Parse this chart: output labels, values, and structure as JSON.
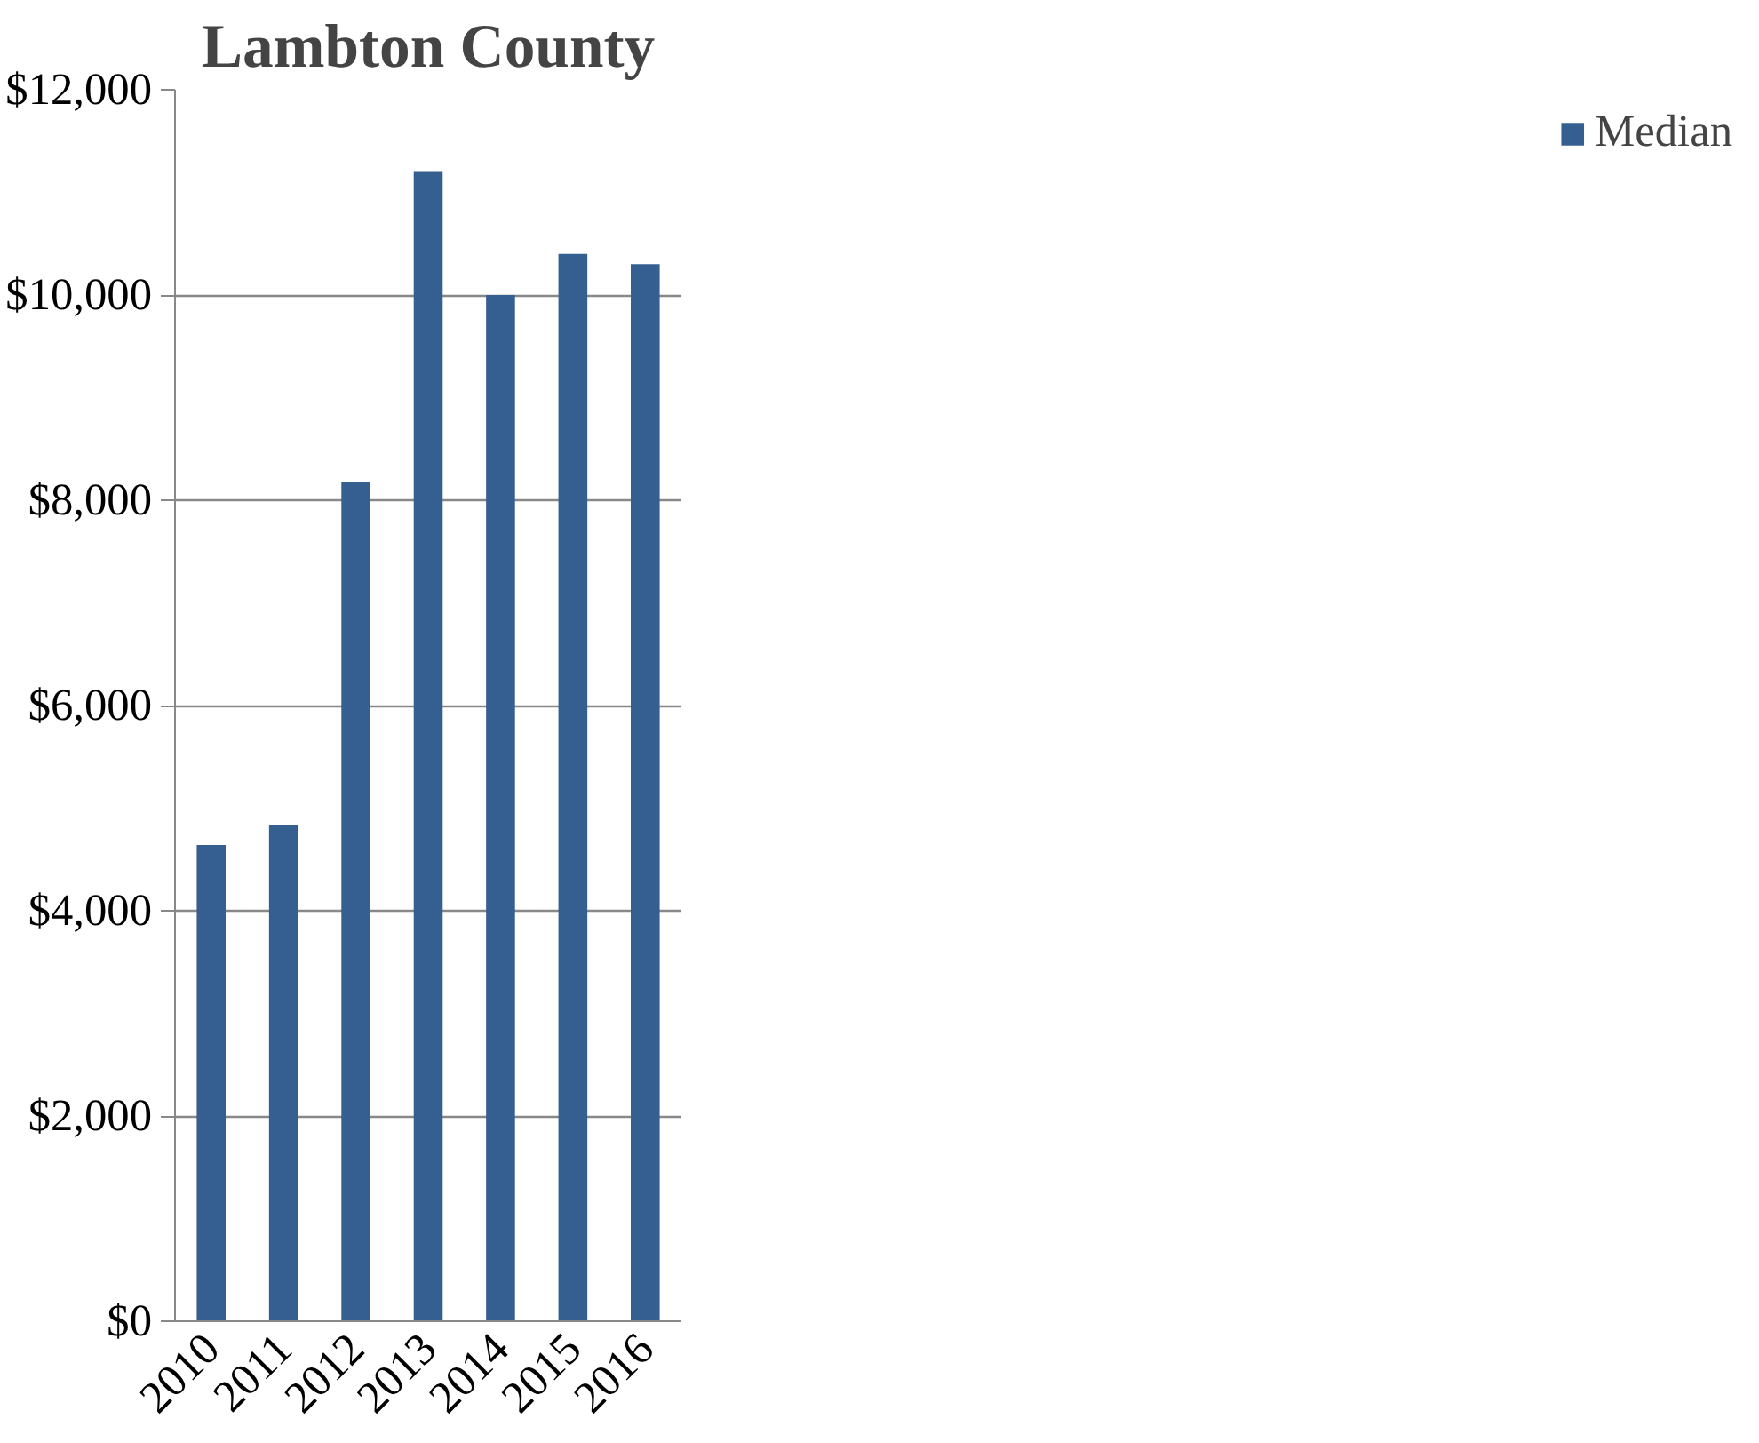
{
  "chart_data": {
    "type": "bar",
    "title": "Lambton County",
    "categories": [
      "2010",
      "2011",
      "2012",
      "2013",
      "2014",
      "2015",
      "2016"
    ],
    "series": [
      {
        "name": "Median",
        "color": "#355f91",
        "values": [
          4640,
          4840,
          8180,
          11200,
          10000,
          10400,
          10300
        ]
      }
    ],
    "ylim": [
      0,
      12000
    ],
    "yticks": [
      {
        "value": 0,
        "label": "$0"
      },
      {
        "value": 2000,
        "label": "$2,000"
      },
      {
        "value": 4000,
        "label": "$4,000"
      },
      {
        "value": 6000,
        "label": "$6,000"
      },
      {
        "value": 8000,
        "label": "$8,000"
      },
      {
        "value": 10000,
        "label": "$10,000"
      },
      {
        "value": 12000,
        "label": "$12,000"
      }
    ],
    "grid": "y",
    "legend": "right"
  }
}
